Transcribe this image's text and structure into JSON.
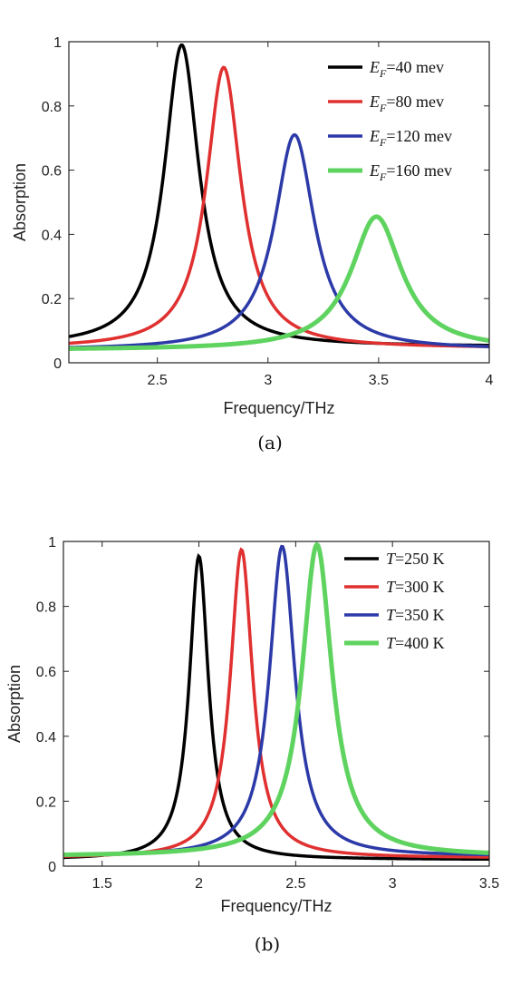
{
  "chart_data": [
    {
      "type": "line",
      "caption": "(a)",
      "xlabel": "Frequency/THz",
      "ylabel": "Absorption",
      "xlim": [
        2.1,
        4.0
      ],
      "ylim": [
        0,
        1.0
      ],
      "xticks": [
        2.5,
        3,
        3.5,
        4
      ],
      "xtick_labels": [
        "2.5",
        "3",
        "3.5",
        "4"
      ],
      "yticks": [
        0,
        0.2,
        0.4,
        0.6,
        0.8,
        1
      ],
      "ytick_labels": [
        "0",
        "0.2",
        "0.4",
        "0.6",
        "0.8",
        "1"
      ],
      "legend_position": "top-right",
      "series": [
        {
          "name_var": "E",
          "name_sub": "F",
          "name_rest": "=40 mev",
          "color": "#000000",
          "peak_x": 2.61,
          "peak_y": 0.99,
          "width": 0.19,
          "baseline": 0.05
        },
        {
          "name_var": "E",
          "name_sub": "F",
          "name_rest": "=80 mev",
          "color": "#e03030",
          "peak_x": 2.8,
          "peak_y": 0.92,
          "width": 0.19,
          "baseline": 0.045
        },
        {
          "name_var": "E",
          "name_sub": "F",
          "name_rest": "=120 mev",
          "color": "#2c3aa8",
          "peak_x": 3.12,
          "peak_y": 0.71,
          "width": 0.22,
          "baseline": 0.04
        },
        {
          "name_var": "E",
          "name_sub": "F",
          "name_rest": "=160 mev",
          "color": "#5fd35f",
          "peak_x": 3.49,
          "peak_y": 0.455,
          "width": 0.28,
          "baseline": 0.04
        }
      ]
    },
    {
      "type": "line",
      "caption": "(b)",
      "xlabel": "Frequency/THz",
      "ylabel": "Absorption",
      "xlim": [
        1.3,
        3.5
      ],
      "ylim": [
        0,
        1.0
      ],
      "xticks": [
        1.5,
        2,
        2.5,
        3,
        3.5
      ],
      "xtick_labels": [
        "1.5",
        "2",
        "2.5",
        "3",
        "3.5"
      ],
      "yticks": [
        0,
        0.2,
        0.4,
        0.6,
        0.8,
        1
      ],
      "ytick_labels": [
        "0",
        "0.2",
        "0.4",
        "0.6",
        "0.8",
        "1"
      ],
      "legend_position": "top-right",
      "series": [
        {
          "name_var": "T",
          "name_sub": "",
          "name_rest": "=250 K",
          "color": "#000000",
          "peak_x": 2.0,
          "peak_y": 0.955,
          "width": 0.12,
          "baseline": 0.02
        },
        {
          "name_var": "T",
          "name_sub": "",
          "name_rest": "=300 K",
          "color": "#e03030",
          "peak_x": 2.22,
          "peak_y": 0.975,
          "width": 0.14,
          "baseline": 0.025
        },
        {
          "name_var": "T",
          "name_sub": "",
          "name_rest": "=350 K",
          "color": "#2c3aa8",
          "peak_x": 2.43,
          "peak_y": 0.985,
          "width": 0.16,
          "baseline": 0.03
        },
        {
          "name_var": "T",
          "name_sub": "",
          "name_rest": "=400 K",
          "color": "#5fd35f",
          "peak_x": 2.61,
          "peak_y": 0.99,
          "width": 0.19,
          "baseline": 0.03
        }
      ]
    }
  ]
}
